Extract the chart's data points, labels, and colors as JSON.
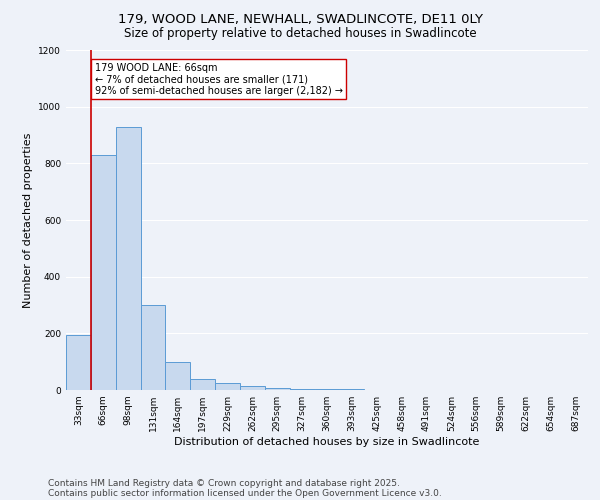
{
  "title1": "179, WOOD LANE, NEWHALL, SWADLINCOTE, DE11 0LY",
  "title2": "Size of property relative to detached houses in Swadlincote",
  "xlabel": "Distribution of detached houses by size in Swadlincote",
  "ylabel": "Number of detached properties",
  "categories": [
    "33sqm",
    "66sqm",
    "98sqm",
    "131sqm",
    "164sqm",
    "197sqm",
    "229sqm",
    "262sqm",
    "295sqm",
    "327sqm",
    "360sqm",
    "393sqm",
    "425sqm",
    "458sqm",
    "491sqm",
    "524sqm",
    "556sqm",
    "589sqm",
    "622sqm",
    "654sqm",
    "687sqm"
  ],
  "values": [
    195,
    830,
    930,
    300,
    100,
    40,
    25,
    15,
    8,
    5,
    3,
    2,
    1,
    1,
    1,
    1,
    0,
    0,
    0,
    0,
    0
  ],
  "bar_color": "#c8d9ee",
  "bar_edge_color": "#5b9bd5",
  "red_line_index": 1,
  "annotation_line1": "179 WOOD LANE: 66sqm",
  "annotation_line2": "← 7% of detached houses are smaller (171)",
  "annotation_line3": "92% of semi-detached houses are larger (2,182) →",
  "annotation_box_color": "#ffffff",
  "annotation_box_edge": "#cc0000",
  "red_line_color": "#cc0000",
  "ylim": [
    0,
    1200
  ],
  "yticks": [
    0,
    200,
    400,
    600,
    800,
    1000,
    1200
  ],
  "footnote1": "Contains HM Land Registry data © Crown copyright and database right 2025.",
  "footnote2": "Contains public sector information licensed under the Open Government Licence v3.0.",
  "bg_color": "#eef2f9",
  "grid_color": "#ffffff",
  "title_fontsize": 9.5,
  "subtitle_fontsize": 8.5,
  "axis_label_fontsize": 8,
  "tick_fontsize": 6.5,
  "annotation_fontsize": 7,
  "footnote_fontsize": 6.5
}
